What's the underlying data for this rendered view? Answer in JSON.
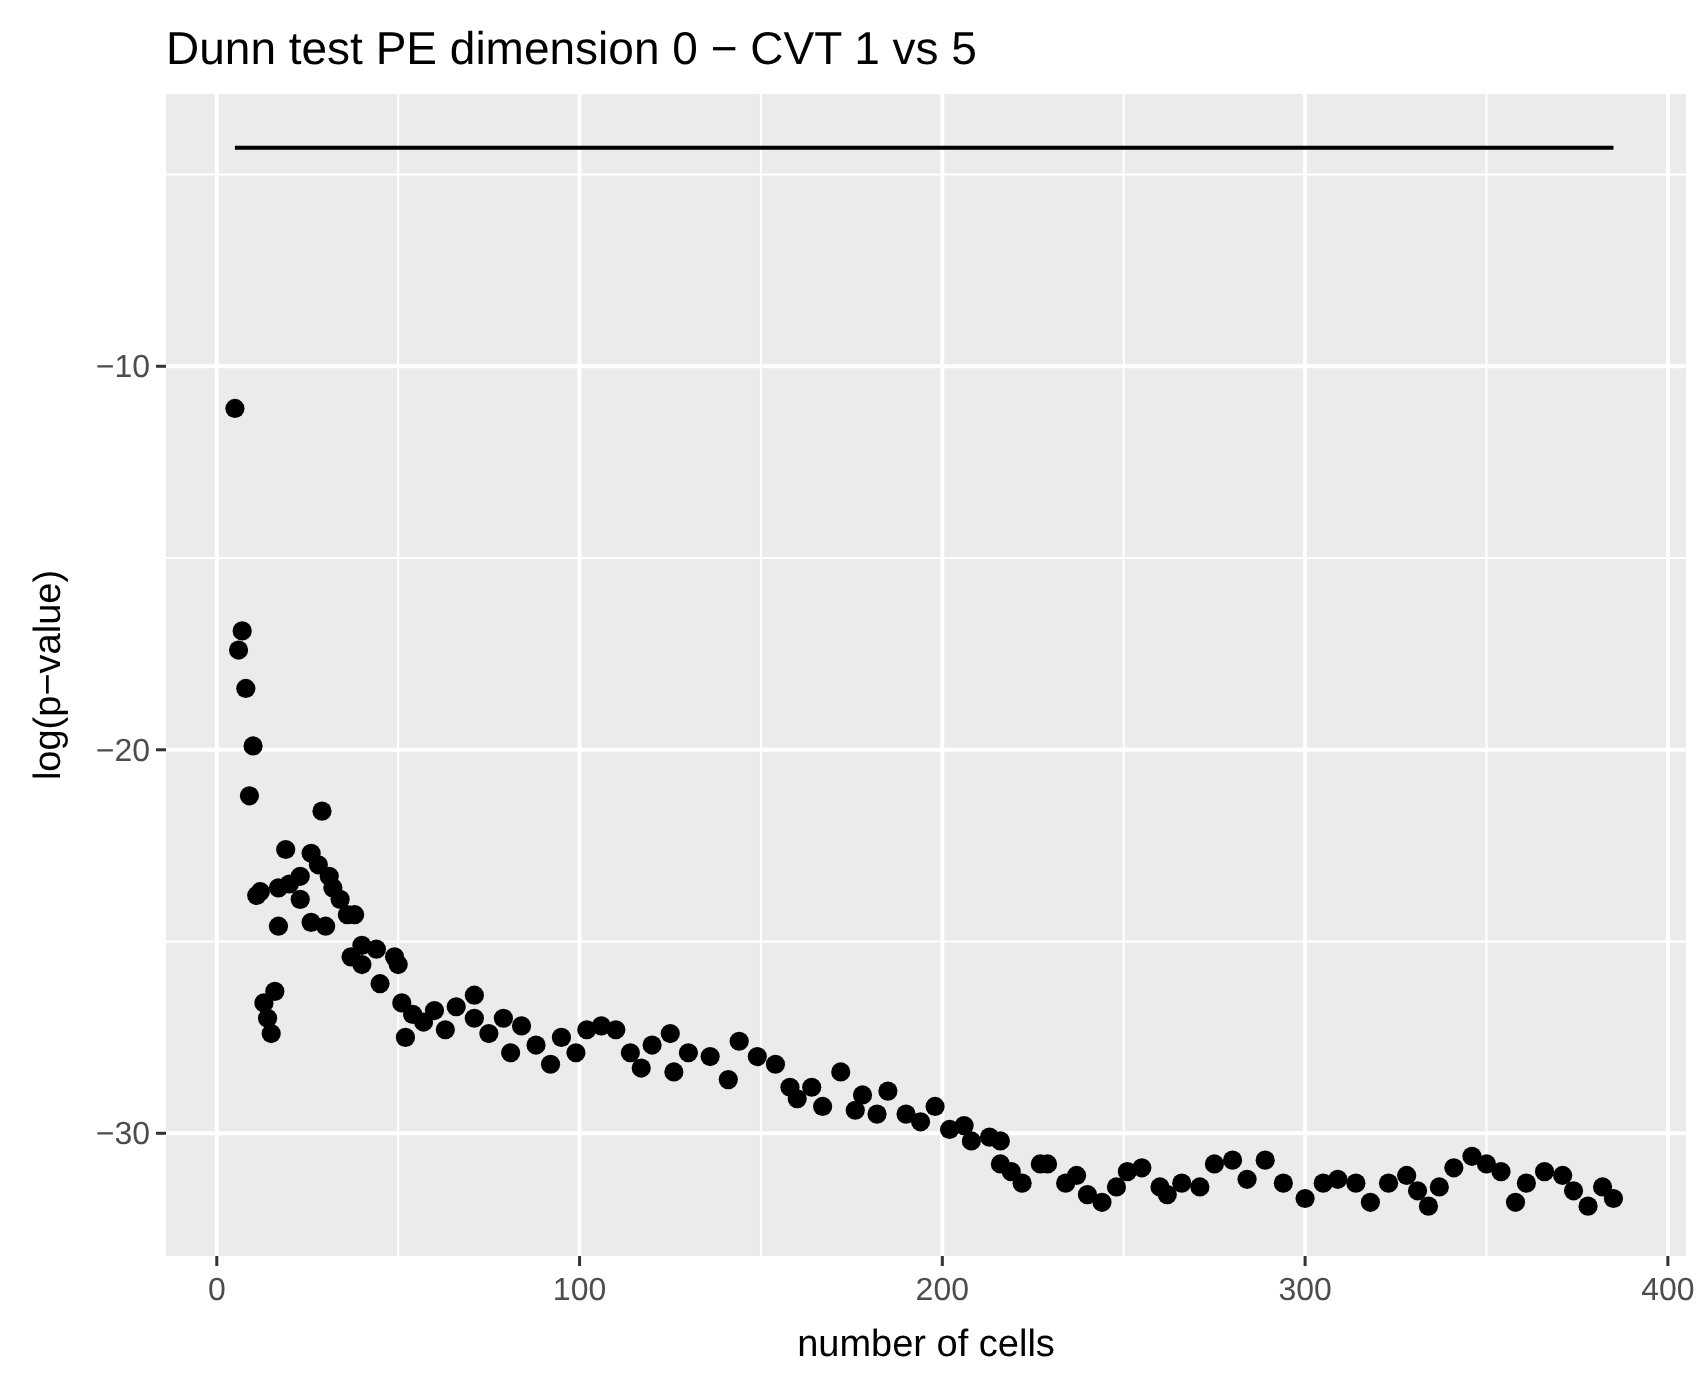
{
  "chart_data": {
    "type": "scatter",
    "title": "Dunn test PE dimension 0 − CVT 1 vs 5",
    "xlabel": "number of cells",
    "ylabel": "log(p−value)",
    "xlim": [
      -14,
      405
    ],
    "ylim": [
      -33.2,
      -2.9
    ],
    "xticks": [
      0,
      100,
      200,
      300,
      400
    ],
    "yticks": [
      -30,
      -20,
      -10
    ],
    "grid": true,
    "series": [
      {
        "type": "scatter",
        "color": "#000000",
        "marker": "circle",
        "x": [
          5,
          6,
          7,
          8,
          9,
          10,
          11,
          12,
          13,
          14,
          15,
          16,
          17,
          17,
          19,
          20,
          23,
          23,
          26,
          26,
          28,
          29,
          30,
          31,
          32,
          34,
          36,
          37,
          38,
          40,
          40,
          44,
          45,
          49,
          50,
          51,
          52,
          54,
          57,
          60,
          63,
          66,
          71,
          71,
          75,
          79,
          81,
          84,
          88,
          92,
          95,
          99,
          102,
          106,
          110,
          114,
          117,
          120,
          125,
          126,
          130,
          136,
          141,
          144,
          149,
          154,
          158,
          160,
          164,
          167,
          172,
          176,
          178,
          182,
          185,
          190,
          194,
          198,
          202,
          206,
          208,
          213,
          216,
          216,
          219,
          222,
          227,
          229,
          234,
          237,
          240,
          244,
          248,
          251,
          255,
          260,
          262,
          266,
          271,
          275,
          280,
          284,
          289,
          294,
          300,
          305,
          309,
          314,
          318,
          323,
          328,
          331,
          334,
          337,
          341,
          346,
          350,
          354,
          358,
          361,
          366,
          371,
          374,
          378,
          382,
          385
        ],
        "values": [
          -11.1,
          -17.4,
          -16.9,
          -18.4,
          -21.2,
          -19.9,
          -23.8,
          -23.7,
          -26.6,
          -27.0,
          -27.4,
          -26.3,
          -24.6,
          -23.6,
          -22.6,
          -23.5,
          -23.3,
          -23.9,
          -22.7,
          -24.5,
          -23.0,
          -21.6,
          -24.6,
          -23.3,
          -23.6,
          -23.9,
          -24.3,
          -25.4,
          -24.3,
          -25.1,
          -25.6,
          -25.2,
          -26.1,
          -25.4,
          -25.6,
          -26.6,
          -27.5,
          -26.9,
          -27.1,
          -26.8,
          -27.3,
          -26.7,
          -26.4,
          -27.0,
          -27.4,
          -27.0,
          -27.9,
          -27.2,
          -27.7,
          -28.2,
          -27.5,
          -27.9,
          -27.3,
          -27.2,
          -27.3,
          -27.9,
          -28.3,
          -27.7,
          -27.4,
          -28.4,
          -27.9,
          -28.0,
          -28.6,
          -27.6,
          -28.0,
          -28.2,
          -28.8,
          -29.1,
          -28.8,
          -29.3,
          -28.4,
          -29.4,
          -29.0,
          -29.5,
          -28.9,
          -29.5,
          -29.7,
          -29.3,
          -29.9,
          -29.8,
          -30.2,
          -30.1,
          -30.2,
          -30.8,
          -31.0,
          -31.3,
          -30.8,
          -30.8,
          -31.3,
          -31.1,
          -31.6,
          -31.8,
          -31.4,
          -31.0,
          -30.9,
          -31.4,
          -31.6,
          -31.3,
          -31.4,
          -30.8,
          -30.7,
          -31.2,
          -30.7,
          -31.3,
          -31.7,
          -31.3,
          -31.2,
          -31.3,
          -31.8,
          -31.3,
          -31.1,
          -31.5,
          -31.9,
          -31.4,
          -30.9,
          -30.6,
          -30.8,
          -31.0,
          -31.8,
          -31.3,
          -31.0,
          -31.1,
          -31.5,
          -31.9,
          -31.4,
          -31.7
        ]
      },
      {
        "type": "line",
        "color": "#000000",
        "x": [
          5,
          385
        ],
        "values": [
          -4.3,
          -4.3
        ],
        "marker": "none",
        "line_style": "solid"
      }
    ]
  }
}
